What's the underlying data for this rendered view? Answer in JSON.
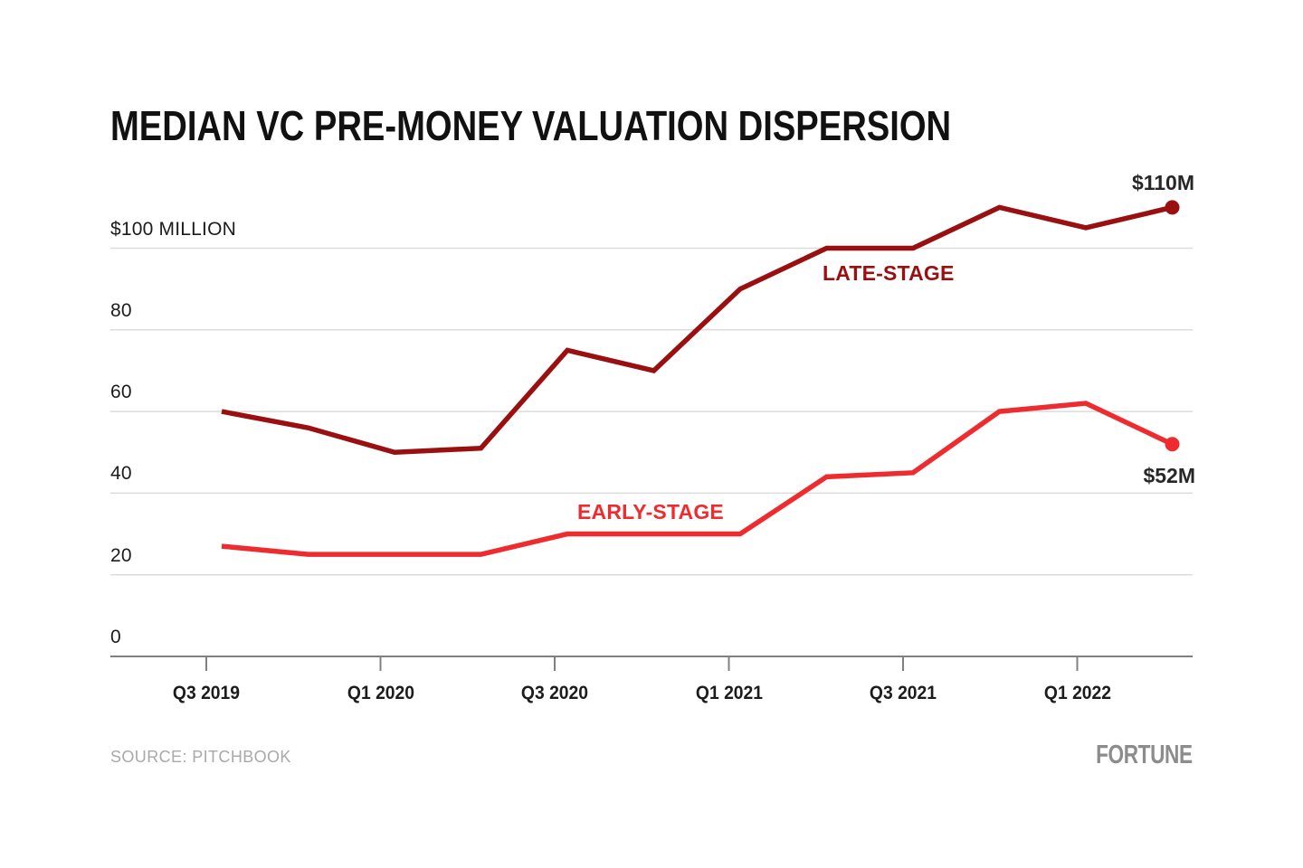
{
  "footer": {
    "source": "SOURCE: PITCHBOOK",
    "logo": "FORTUNE"
  },
  "colors": {
    "late_stage": "#9a0f0f",
    "early_stage": "#ee2b2e",
    "gridline": "#dcdcdc",
    "axis": "#808080",
    "text": "#1c1c1c",
    "muted_text": "#a9a9a9",
    "logo_gray": "#8c8c8c"
  },
  "chart_data": {
    "type": "line",
    "title": "MEDIAN VC PRE-MONEY VALUATION DISPERSION",
    "categories": [
      "Q3 2019",
      "Q4 2019",
      "Q1 2020",
      "Q2 2020",
      "Q3 2020",
      "Q4 2020",
      "Q1 2021",
      "Q2 2021",
      "Q3 2021",
      "Q4 2021",
      "Q1 2022",
      "Q2 2022"
    ],
    "x_tick_labels": [
      "Q3 2019",
      "Q1 2020",
      "Q3 2020",
      "Q1 2021",
      "Q3 2021",
      "Q1 2022"
    ],
    "series": [
      {
        "name": "LATE-STAGE",
        "color": "#9a0f0f",
        "values": [
          60,
          56,
          50,
          51,
          75,
          70,
          90,
          100,
          100,
          110,
          105,
          110
        ],
        "end_label": "$110M"
      },
      {
        "name": "EARLY-STAGE",
        "color": "#ee2b2e",
        "values": [
          27,
          25,
          25,
          25,
          30,
          30,
          30,
          44,
          45,
          60,
          62,
          52
        ],
        "end_label": "$52M"
      }
    ],
    "y_ticks": [
      {
        "value": 100,
        "label": "$100 MILLION"
      },
      {
        "value": 80,
        "label": "80"
      },
      {
        "value": 60,
        "label": "60"
      },
      {
        "value": 40,
        "label": "40"
      },
      {
        "value": 20,
        "label": "20"
      },
      {
        "value": 0,
        "label": "0"
      }
    ],
    "ylim": [
      0,
      118
    ],
    "grid": "horizontal",
    "legend": "inline-labels",
    "units": "USD millions"
  }
}
